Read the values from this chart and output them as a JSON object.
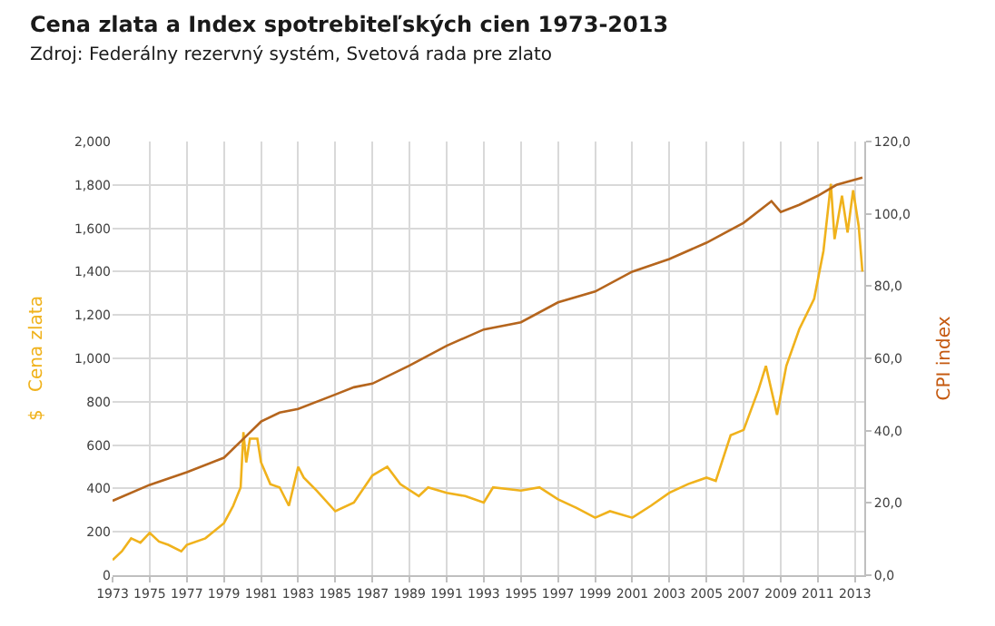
{
  "chart_data": {
    "type": "line",
    "title": "Cena zlata a Index spotrebiteľských cien 1973-2013",
    "subtitle": "Zdroj: Federálny rezervný systém, Svetová rada pre zlato",
    "ylabel": "$   Cena zlata",
    "y2label": "CPI index",
    "xlim": [
      1973,
      2013.5
    ],
    "xticks": [
      1973,
      1975,
      1977,
      1979,
      1981,
      1983,
      1985,
      1987,
      1989,
      1991,
      1993,
      1995,
      1997,
      1999,
      2001,
      2003,
      2005,
      2007,
      2009,
      2011,
      2013
    ],
    "ylim": [
      0,
      2000
    ],
    "yticks": [
      0,
      200,
      400,
      600,
      800,
      {
        "value": 1000,
        "label": "1,000"
      },
      {
        "value": 1200,
        "label": "1,200"
      },
      {
        "value": 1400,
        "label": "1,400"
      },
      {
        "value": 1600,
        "label": "1,600"
      },
      {
        "value": 1800,
        "label": "1,800"
      },
      {
        "value": 2000,
        "label": "2,000"
      }
    ],
    "y2lim": [
      0,
      120
    ],
    "y2ticks": [
      {
        "value": 0,
        "label": "0,0"
      },
      {
        "value": 20,
        "label": "20,0"
      },
      {
        "value": 40,
        "label": "40,0"
      },
      {
        "value": 60,
        "label": "60,0"
      },
      {
        "value": 80,
        "label": "80,0"
      },
      {
        "value": 100,
        "label": "100,0"
      },
      {
        "value": 120,
        "label": "120,0"
      }
    ],
    "grid": true,
    "marker": "none",
    "line_style": "solid",
    "series": [
      {
        "color": "#f0b21c",
        "x": [
          1973.0,
          1973.5,
          1974,
          1974.5,
          1975,
          1975.5,
          1976,
          1976.7,
          1977,
          1978,
          1978.5,
          1979,
          1979.5,
          1979.9,
          1980.05,
          1980.2,
          1980.4,
          1980.8,
          1981,
          1981.5,
          1982,
          1982.5,
          1983,
          1983.3,
          1984,
          1985,
          1986,
          1987,
          1987.8,
          1988.5,
          1989.5,
          1990,
          1991,
          1992,
          1993,
          1993.5,
          1995,
          1996,
          1997,
          1998,
          1999,
          1999.8,
          2001,
          2002,
          2003,
          2004,
          2005,
          2005.5,
          2006.3,
          2007,
          2007.8,
          2008.2,
          2008.8,
          2009.3,
          2010,
          2010.8,
          2011.3,
          2011.7,
          2011.9,
          2012.3,
          2012.6,
          2012.9,
          2013.2,
          2013.4
        ],
        "values": [
          70,
          110,
          170,
          150,
          195,
          155,
          140,
          110,
          140,
          170,
          205,
          240,
          320,
          405,
          660,
          520,
          630,
          630,
          520,
          420,
          405,
          320,
          500,
          450,
          390,
          295,
          335,
          460,
          500,
          420,
          365,
          405,
          380,
          365,
          335,
          405,
          390,
          405,
          350,
          310,
          265,
          295,
          265,
          320,
          380,
          420,
          450,
          435,
          645,
          670,
          855,
          965,
          740,
          965,
          1135,
          1275,
          1495,
          1805,
          1550,
          1750,
          1580,
          1775,
          1610,
          1400
        ]
      },
      {
        "color": "#b5651d",
        "axis": "y2",
        "x": [
          1973,
          1975,
          1977,
          1979,
          1980,
          1981,
          1982,
          1983,
          1985,
          1986,
          1987,
          1989,
          1991,
          1993,
          1995,
          1997,
          1999,
          2001,
          2003,
          2005,
          2007,
          2008.5,
          2009,
          2010,
          2011,
          2012,
          2013.4
        ],
        "values": [
          20.6,
          25,
          28.5,
          32.5,
          37.5,
          42.5,
          45,
          46,
          50,
          52,
          53,
          58,
          63.5,
          68,
          70,
          75.5,
          78.5,
          84,
          87.5,
          92,
          97.5,
          103.5,
          100.5,
          102.5,
          105,
          108,
          110
        ]
      }
    ]
  }
}
